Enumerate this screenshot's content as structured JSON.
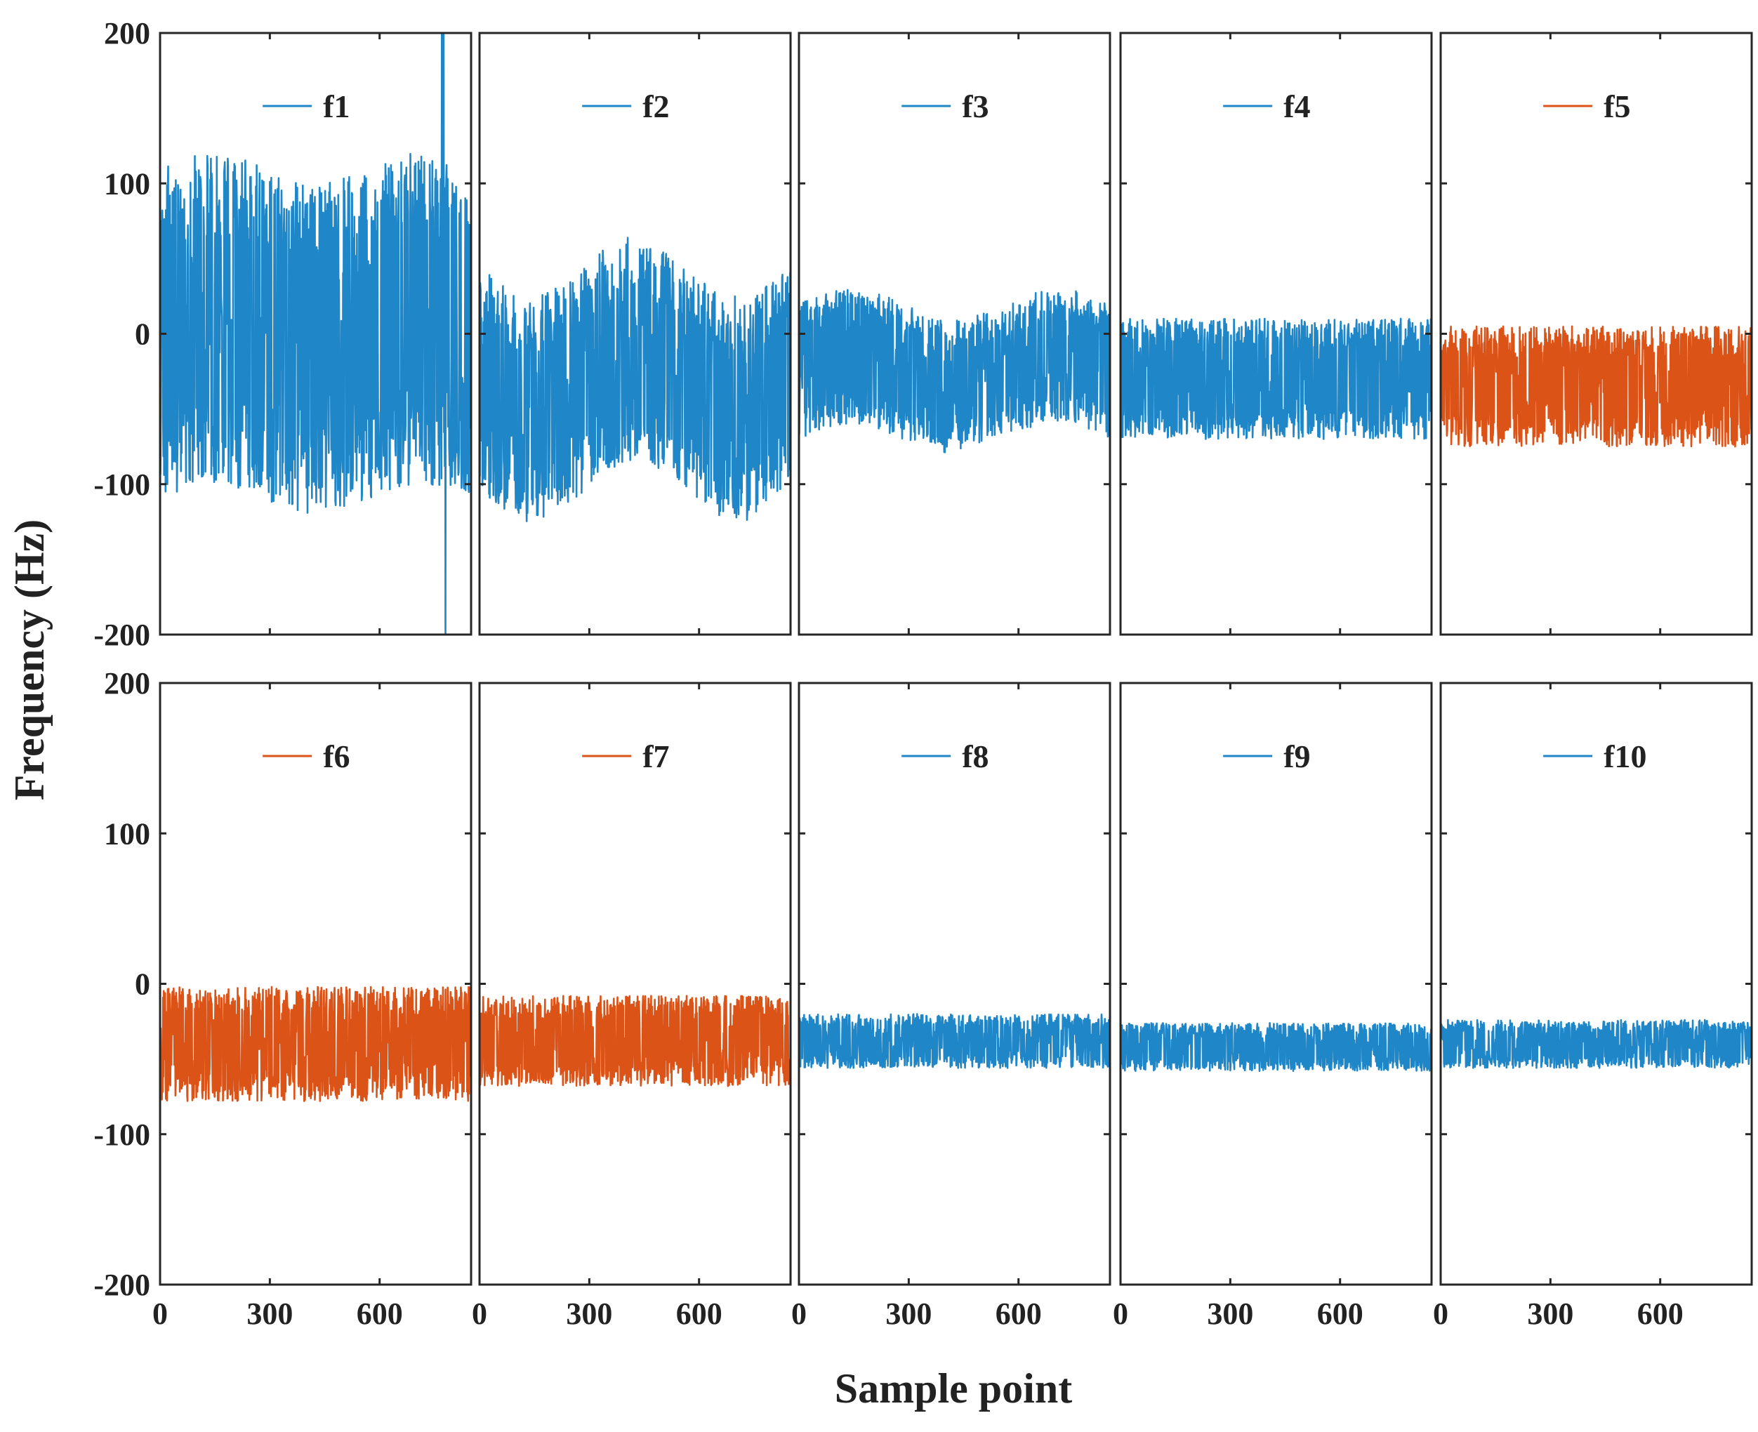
{
  "chart_data": {
    "type": "line",
    "layout": "small-multiples 2x5",
    "xlabel": "Sample point",
    "ylabel": "Frequency (Hz)",
    "ylim": [
      -200,
      200
    ],
    "xlim": [
      0,
      850
    ],
    "yticks": [
      200,
      100,
      0,
      -100,
      -200
    ],
    "ytick_labels": [
      "200",
      "100",
      "0",
      "-100",
      "-200"
    ],
    "xticks": [
      0,
      300,
      600
    ],
    "xtick_labels": [
      "0",
      "300",
      "600"
    ],
    "colors": {
      "blue": "#1f86c8",
      "orange": "#dc5318"
    },
    "panels": [
      {
        "name": "f1",
        "color": "#1f86c8",
        "center": 0,
        "spread": 110,
        "drift": 10,
        "upper": 140,
        "lower": -170,
        "seed": 11,
        "spikes": [
          [
            770,
            200
          ],
          [
            780,
            -200
          ],
          [
            775,
            200
          ]
        ]
      },
      {
        "name": "f2",
        "color": "#1f86c8",
        "center": -30,
        "spread": 75,
        "drift": -20,
        "upper": 90,
        "lower": -155,
        "seed": 23,
        "spikes": []
      },
      {
        "name": "f3",
        "color": "#1f86c8",
        "center": -25,
        "spread": 45,
        "drift": 10,
        "upper": 45,
        "lower": -120,
        "seed": 37,
        "spikes": []
      },
      {
        "name": "f4",
        "color": "#1f86c8",
        "center": -30,
        "spread": 40,
        "drift": 0,
        "upper": 12,
        "lower": -90,
        "seed": 41,
        "spikes": []
      },
      {
        "name": "f5",
        "color": "#dc5318",
        "center": -35,
        "spread": 40,
        "drift": 0,
        "upper": 10,
        "lower": -88,
        "seed": 53,
        "spikes": []
      },
      {
        "name": "f6",
        "color": "#dc5318",
        "center": -40,
        "spread": 38,
        "drift": 0,
        "upper": 8,
        "lower": -88,
        "seed": 61,
        "spikes": []
      },
      {
        "name": "f7",
        "color": "#dc5318",
        "center": -38,
        "spread": 30,
        "drift": 0,
        "upper": -2,
        "lower": -80,
        "seed": 71,
        "spikes": []
      },
      {
        "name": "f8",
        "color": "#1f86c8",
        "center": -38,
        "spread": 18,
        "drift": 0,
        "upper": -8,
        "lower": -80,
        "seed": 83,
        "spikes": []
      },
      {
        "name": "f9",
        "color": "#1f86c8",
        "center": -42,
        "spread": 16,
        "drift": 0,
        "upper": -10,
        "lower": -80,
        "seed": 97,
        "spikes": []
      },
      {
        "name": "f10",
        "color": "#1f86c8",
        "center": -40,
        "spread": 16,
        "drift": 0,
        "upper": -12,
        "lower": -80,
        "seed": 101,
        "spikes": []
      }
    ]
  }
}
